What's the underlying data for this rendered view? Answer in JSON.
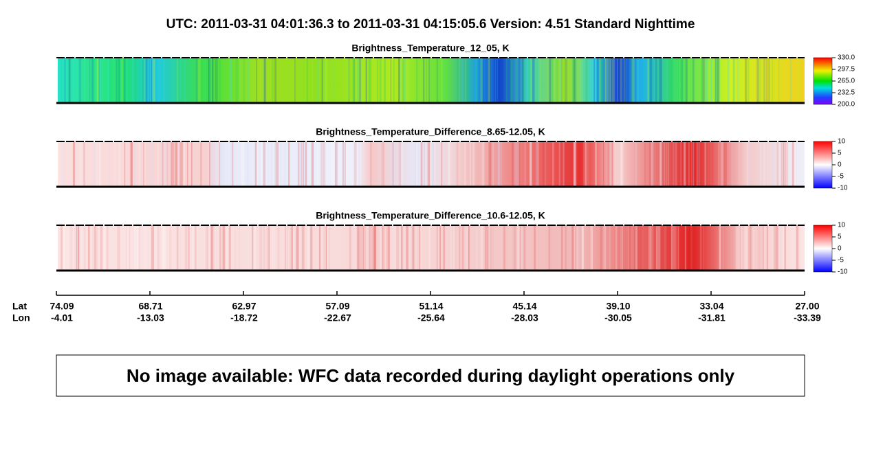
{
  "title": "UTC:  2011-03-31   04:01:36.3  to  2011-03-31   04:15:05.6   Version: 4.51  Standard Nighttime",
  "panels": [
    {
      "title": "Brightness_Temperature_12_05, K",
      "colorbar_labels": [
        "330.0",
        "297.5",
        "265.0",
        "232.5",
        "200.0"
      ]
    },
    {
      "title": "Brightness_Temperature_Difference_8.65-12.05, K",
      "colorbar_labels": [
        "10",
        "5",
        "0",
        "-5",
        "-10"
      ]
    },
    {
      "title": "Brightness_Temperature_Difference_10.6-12.05, K",
      "colorbar_labels": [
        "10",
        "5",
        "0",
        "-5",
        "-10"
      ]
    }
  ],
  "axis": {
    "row_labels": [
      "Lat",
      "Lon"
    ],
    "ticks": [
      {
        "lat": "74.09",
        "lon": "-4.01"
      },
      {
        "lat": "68.71",
        "lon": "-13.03"
      },
      {
        "lat": "62.97",
        "lon": "-18.72"
      },
      {
        "lat": "57.09",
        "lon": "-22.67"
      },
      {
        "lat": "51.14",
        "lon": "-25.64"
      },
      {
        "lat": "45.14",
        "lon": "-28.03"
      },
      {
        "lat": "39.10",
        "lon": "-30.05"
      },
      {
        "lat": "33.04",
        "lon": "-31.81"
      },
      {
        "lat": "27.00",
        "lon": "-33.39"
      }
    ]
  },
  "message": "No image available: WFC data recorded during daylight operations only"
}
